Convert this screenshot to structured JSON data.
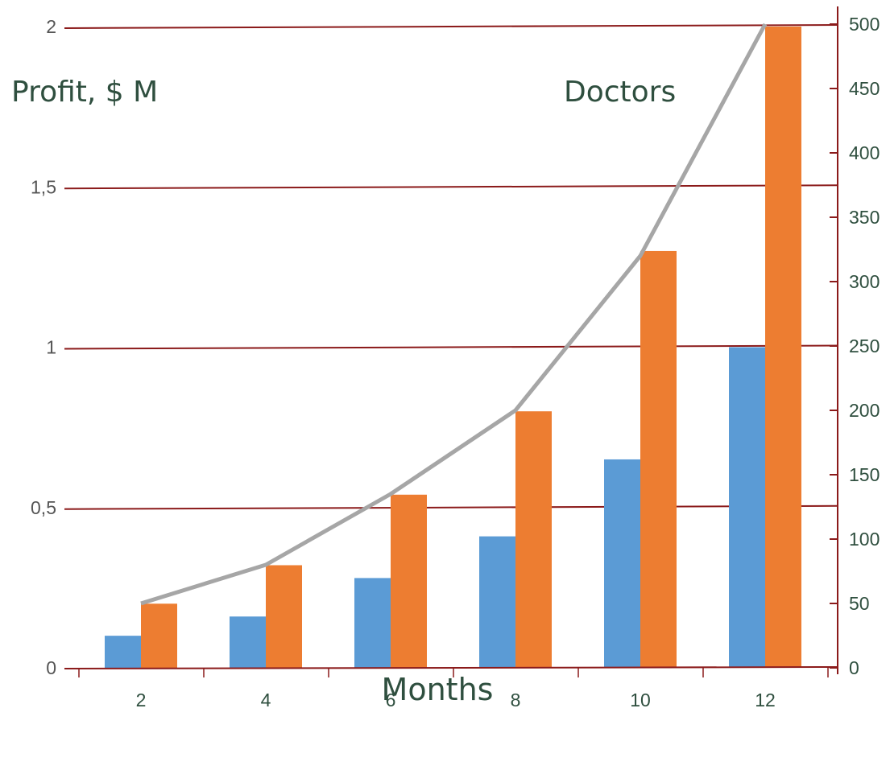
{
  "colors": {
    "profit_bar": "#5b9bd5",
    "doctors_bar": "#ed7d31",
    "trend_line": "#a6a6a6",
    "gridline": "#8b1a1a",
    "text": "#2f4f3f"
  },
  "chart_data": {
    "type": "bar",
    "title": "",
    "xlabel": "Months",
    "ylabel": "Profit, $ M",
    "y2label": "Doctors",
    "categories": [
      "2",
      "4",
      "6",
      "8",
      "10",
      "12"
    ],
    "ylim": [
      0,
      2
    ],
    "y2lim": [
      0,
      500
    ],
    "yticks": [
      "0",
      "0,5",
      "1",
      "1,5",
      "2"
    ],
    "y2ticks": [
      "0",
      "50",
      "100",
      "150",
      "200",
      "250",
      "300",
      "350",
      "400",
      "450",
      "500"
    ],
    "grid": true,
    "legend": "none",
    "series": [
      {
        "type": "bar",
        "axis": "left",
        "color": "#5b9bd5",
        "values": [
          0.1,
          0.16,
          0.28,
          0.41,
          0.65,
          1.0
        ]
      },
      {
        "type": "bar",
        "axis": "left",
        "color": "#ed7d31",
        "values": [
          0.2,
          0.32,
          0.54,
          0.8,
          1.3,
          2.0
        ]
      },
      {
        "type": "line",
        "axis": "right",
        "color": "#a6a6a6",
        "values": [
          50,
          80,
          135,
          200,
          320,
          500
        ]
      }
    ]
  }
}
